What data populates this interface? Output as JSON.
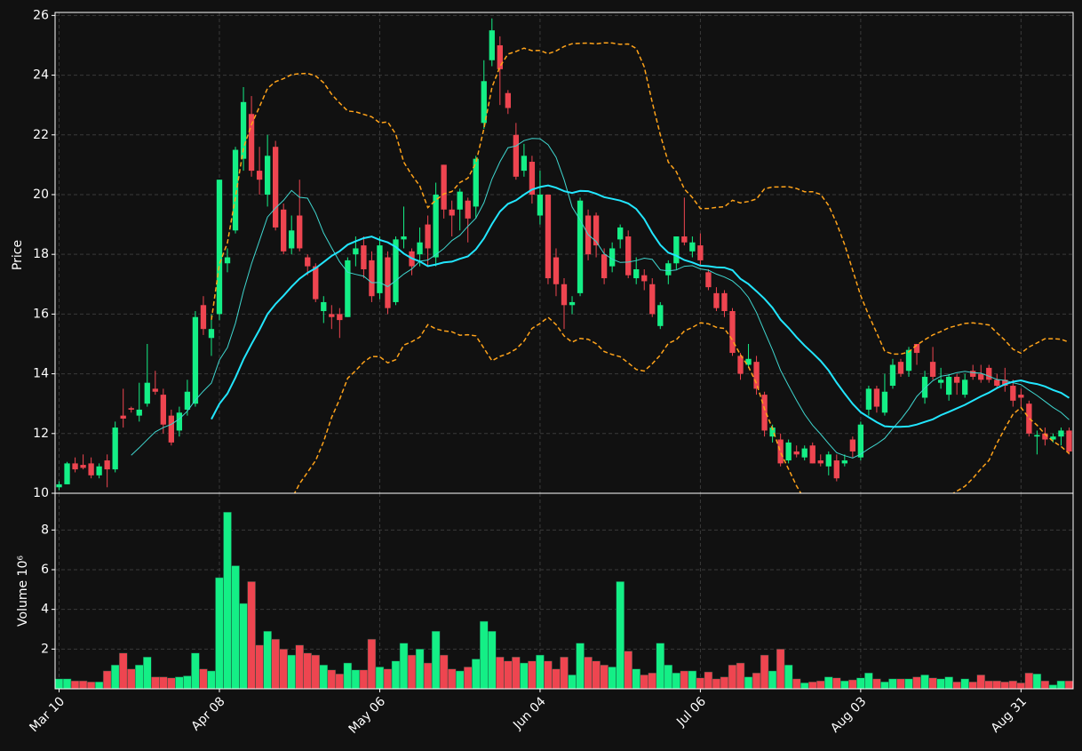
{
  "chart_data": {
    "type": "candlestick",
    "y_label": "Price",
    "volume_label": "Volume  10⁶",
    "categories": [
      "Mar 10",
      null,
      null,
      null,
      null,
      null,
      null,
      null,
      null,
      null,
      null,
      null,
      null,
      null,
      null,
      null,
      null,
      null,
      null,
      null,
      "Apr 08",
      null,
      null,
      null,
      null,
      null,
      null,
      null,
      null,
      null,
      null,
      null,
      null,
      null,
      null,
      null,
      null,
      null,
      null,
      null,
      "May 06",
      null,
      null,
      null,
      null,
      null,
      null,
      null,
      null,
      null,
      null,
      null,
      null,
      null,
      null,
      null,
      null,
      null,
      null,
      null,
      "Jun 04",
      null,
      null,
      null,
      null,
      null,
      null,
      null,
      null,
      null,
      null,
      null,
      null,
      null,
      null,
      null,
      null,
      null,
      null,
      null,
      "Jul 06",
      null,
      null,
      null,
      null,
      null,
      null,
      null,
      null,
      null,
      null,
      null,
      null,
      null,
      null,
      null,
      null,
      null,
      null,
      null,
      "Aug 03",
      null,
      null,
      null,
      null,
      null,
      null,
      null,
      null,
      null,
      null,
      null,
      null,
      null,
      null,
      null,
      null,
      null,
      null,
      null,
      "Aug 31",
      null,
      null,
      null,
      null,
      null,
      null
    ],
    "open": [
      10.2,
      10.3,
      11.0,
      10.95,
      11.0,
      10.6,
      11.1,
      10.8,
      12.6,
      12.85,
      12.6,
      13.0,
      13.5,
      13.3,
      12.6,
      12.1,
      12.8,
      13.0,
      16.3,
      15.2,
      16.0,
      17.7,
      18.8,
      21.2,
      22.7,
      20.8,
      20.0,
      21.6,
      19.5,
      18.2,
      19.3,
      17.9,
      17.6,
      16.1,
      16.0,
      16.0,
      15.9,
      18.0,
      18.3,
      17.8,
      16.7,
      17.9,
      16.4,
      18.5,
      18.1,
      18.0,
      19.0,
      17.9,
      21.0,
      19.5,
      19.5,
      19.8,
      19.6,
      22.4,
      24.5,
      25.0,
      23.4,
      22.0,
      20.8,
      21.1,
      19.3,
      20.0,
      17.9,
      17.0,
      16.3,
      16.7,
      19.3,
      19.3,
      18.0,
      17.6,
      18.5,
      18.6,
      17.2,
      17.3,
      17.0,
      15.6,
      17.3,
      17.7,
      18.6,
      18.1,
      18.3,
      17.4,
      16.7,
      16.7,
      16.1,
      14.6,
      14.3,
      14.4,
      13.3,
      11.9,
      11.8,
      11.1,
      11.4,
      11.2,
      11.6,
      11.1,
      10.9,
      11.1,
      11.0,
      11.8,
      11.2,
      12.8,
      13.5,
      12.7,
      13.6,
      14.4,
      14.1,
      15.0,
      13.2,
      14.4,
      13.7,
      13.3,
      13.9,
      13.3,
      14.1,
      14.0,
      14.2,
      13.8,
      13.8,
      13.6,
      13.3,
      13.0,
      11.9,
      12.0,
      11.8,
      11.9,
      12.1
    ],
    "high": [
      10.4,
      11.05,
      11.2,
      11.3,
      11.2,
      11.0,
      11.3,
      12.4,
      13.5,
      12.9,
      13.7,
      15.0,
      14.1,
      13.5,
      12.8,
      12.9,
      13.8,
      16.1,
      16.6,
      16.0,
      20.5,
      18.2,
      21.6,
      23.6,
      23.3,
      21.6,
      22.0,
      21.8,
      19.7,
      19.3,
      20.5,
      18.0,
      17.7,
      16.6,
      16.3,
      16.2,
      17.9,
      18.6,
      18.6,
      18.1,
      18.6,
      18.1,
      18.6,
      19.6,
      18.2,
      18.9,
      19.3,
      20.4,
      21.0,
      19.8,
      20.2,
      19.9,
      21.3,
      24.5,
      25.9,
      25.3,
      23.5,
      22.4,
      21.7,
      21.3,
      20.8,
      20.0,
      18.2,
      17.2,
      16.6,
      19.9,
      19.5,
      19.4,
      18.2,
      18.4,
      19.0,
      18.8,
      17.9,
      17.5,
      17.2,
      16.4,
      17.8,
      18.6,
      19.9,
      18.6,
      18.7,
      17.5,
      16.9,
      16.8,
      16.2,
      14.7,
      15.0,
      14.6,
      13.4,
      12.3,
      12.0,
      11.8,
      11.6,
      11.6,
      11.7,
      11.3,
      11.4,
      11.3,
      11.3,
      11.9,
      12.4,
      13.6,
      13.6,
      14.0,
      14.5,
      14.5,
      14.9,
      15.0,
      14.1,
      14.9,
      14.2,
      14.0,
      14.0,
      14.0,
      14.3,
      14.3,
      14.3,
      14.0,
      14.2,
      13.8,
      13.5,
      13.1,
      12.1,
      12.2,
      12.0,
      12.2,
      12.2
    ],
    "low": [
      10.1,
      10.3,
      10.7,
      10.8,
      10.5,
      10.5,
      10.2,
      10.7,
      12.2,
      12.7,
      12.4,
      12.9,
      13.3,
      12.0,
      11.6,
      11.9,
      12.6,
      12.9,
      15.3,
      14.6,
      15.8,
      17.4,
      18.7,
      20.8,
      20.6,
      20.0,
      19.6,
      18.8,
      18.0,
      18.0,
      18.1,
      17.3,
      16.4,
      15.7,
      15.5,
      15.2,
      15.9,
      17.6,
      17.2,
      16.4,
      16.5,
      16.0,
      16.3,
      18.2,
      17.3,
      17.6,
      17.6,
      17.6,
      19.2,
      18.6,
      18.8,
      18.4,
      19.2,
      22.2,
      24.3,
      23.0,
      22.7,
      20.5,
      20.6,
      19.7,
      19.0,
      17.0,
      16.6,
      15.5,
      16.0,
      16.6,
      17.8,
      17.9,
      17.0,
      17.4,
      18.2,
      17.2,
      17.0,
      16.8,
      15.9,
      15.5,
      17.0,
      17.5,
      18.3,
      17.9,
      17.6,
      16.8,
      16.1,
      15.9,
      14.6,
      13.8,
      14.2,
      13.3,
      11.9,
      11.7,
      10.9,
      11.0,
      11.2,
      11.1,
      11.0,
      10.9,
      10.6,
      10.4,
      10.9,
      11.2,
      11.1,
      12.6,
      12.7,
      12.6,
      13.5,
      13.9,
      13.9,
      14.3,
      13.0,
      13.8,
      13.5,
      13.1,
      13.3,
      13.2,
      13.8,
      13.7,
      13.7,
      13.5,
      13.4,
      12.9,
      12.9,
      11.9,
      11.3,
      11.6,
      11.7,
      11.6,
      11.3
    ],
    "close": [
      10.3,
      11.0,
      10.8,
      10.85,
      10.6,
      10.9,
      10.8,
      12.2,
      12.5,
      12.8,
      12.8,
      13.7,
      13.4,
      12.3,
      11.7,
      12.7,
      13.4,
      15.9,
      15.5,
      15.5,
      20.5,
      17.9,
      21.5,
      23.1,
      20.8,
      20.5,
      21.3,
      18.9,
      18.1,
      18.8,
      18.2,
      17.6,
      16.5,
      16.4,
      15.9,
      15.8,
      17.8,
      18.2,
      17.5,
      16.6,
      18.3,
      16.2,
      18.5,
      18.6,
      17.6,
      18.4,
      18.2,
      20.0,
      19.5,
      19.3,
      20.1,
      19.2,
      21.2,
      23.8,
      25.5,
      24.2,
      22.9,
      20.6,
      21.3,
      20.0,
      20.0,
      17.2,
      17.0,
      16.3,
      16.4,
      19.8,
      18.0,
      18.3,
      17.2,
      18.2,
      18.9,
      17.3,
      17.5,
      17.1,
      16.0,
      16.3,
      17.7,
      18.6,
      18.4,
      18.4,
      17.8,
      16.9,
      16.2,
      16.1,
      14.7,
      14.0,
      14.5,
      13.5,
      12.1,
      12.2,
      11.0,
      11.7,
      11.3,
      11.5,
      11.0,
      11.0,
      11.3,
      10.5,
      11.1,
      11.4,
      12.3,
      13.5,
      12.9,
      13.4,
      14.3,
      14.0,
      14.8,
      14.7,
      13.9,
      13.9,
      13.8,
      13.9,
      13.7,
      13.8,
      13.9,
      13.8,
      13.8,
      13.6,
      13.6,
      13.1,
      13.2,
      12.0,
      11.95,
      11.8,
      11.9,
      12.1,
      11.4
    ],
    "volume": [
      0.5,
      0.5,
      0.4,
      0.4,
      0.35,
      0.35,
      0.9,
      1.2,
      1.8,
      1.0,
      1.2,
      1.6,
      0.6,
      0.6,
      0.55,
      0.6,
      0.65,
      1.8,
      1.0,
      0.9,
      5.6,
      8.9,
      6.2,
      4.3,
      5.4,
      2.2,
      2.9,
      2.5,
      2.0,
      1.7,
      2.2,
      1.8,
      1.7,
      1.2,
      0.95,
      0.75,
      1.3,
      0.95,
      0.95,
      2.5,
      1.1,
      1.0,
      1.4,
      2.3,
      1.7,
      2.0,
      1.3,
      2.9,
      1.7,
      1.0,
      0.9,
      1.1,
      1.5,
      3.4,
      2.9,
      1.6,
      1.4,
      1.6,
      1.3,
      1.4,
      1.7,
      1.4,
      1.0,
      1.6,
      0.7,
      2.3,
      1.6,
      1.4,
      1.2,
      1.1,
      5.4,
      1.9,
      1.0,
      0.7,
      0.8,
      2.3,
      1.2,
      0.8,
      0.9,
      0.9,
      0.55,
      0.85,
      0.5,
      0.6,
      1.2,
      1.3,
      0.6,
      0.8,
      1.7,
      0.9,
      2.0,
      1.2,
      0.5,
      0.3,
      0.35,
      0.4,
      0.6,
      0.55,
      0.4,
      0.45,
      0.55,
      0.8,
      0.5,
      0.35,
      0.5,
      0.5,
      0.5,
      0.6,
      0.7,
      0.55,
      0.5,
      0.6,
      0.35,
      0.5,
      0.35,
      0.7,
      0.4,
      0.4,
      0.35,
      0.4,
      0.3,
      0.8,
      0.75,
      0.4,
      0.2,
      0.4,
      0.4
    ],
    "up_color": "#14ef86",
    "down_color": "#ee4550",
    "ylim": [
      10,
      26.1
    ],
    "yticks": [
      10,
      12,
      14,
      16,
      18,
      20,
      22,
      24,
      26
    ],
    "volume_ylim": [
      0,
      9.85
    ],
    "volume_yticks": [
      2,
      4,
      6,
      8
    ],
    "grid": true,
    "moving_averages": [
      {
        "period": 10,
        "color": "#3fd6cf",
        "width": 1
      },
      {
        "period": 20,
        "color": "#22e6ff",
        "width": 2
      }
    ],
    "bollinger": {
      "period": 20,
      "std": 2,
      "color": "#ffa31a"
    }
  }
}
